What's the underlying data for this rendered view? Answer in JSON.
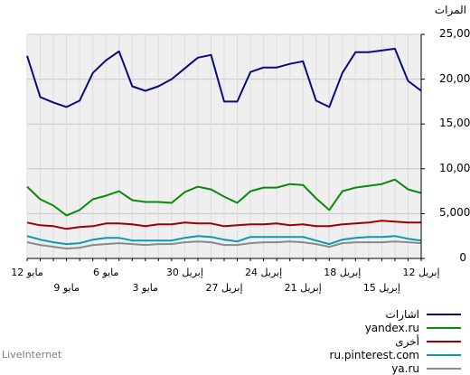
{
  "footer": "LiveInternet",
  "chart_data": {
    "type": "line",
    "y_axis_title": "المرات",
    "y_ticks": [
      0,
      5000,
      10000,
      15000,
      20000,
      25000
    ],
    "y_tick_labels": [
      "0",
      "5,000",
      "10,000",
      "15,000",
      "20,000",
      "25,000"
    ],
    "ylim": [
      0,
      25000
    ],
    "grid": true,
    "x_tick_labels": [
      {
        "index": 0,
        "text": "12 مايو",
        "row": 1
      },
      {
        "index": 3,
        "text": "9 مايو",
        "row": 2
      },
      {
        "index": 6,
        "text": "6 مايو",
        "row": 1
      },
      {
        "index": 9,
        "text": "3 مايو",
        "row": 2
      },
      {
        "index": 12,
        "text": "30 إبريل",
        "row": 1
      },
      {
        "index": 15,
        "text": "27 إبريل",
        "row": 2
      },
      {
        "index": 18,
        "text": "24 إبريل",
        "row": 1
      },
      {
        "index": 21,
        "text": "21 إبريل",
        "row": 2
      },
      {
        "index": 24,
        "text": "18 إبريل",
        "row": 1
      },
      {
        "index": 27,
        "text": "15 إبريل",
        "row": 2
      },
      {
        "index": 30,
        "text": "12 إبريل",
        "row": 1
      }
    ],
    "series": [
      {
        "name": "اشارات",
        "color": "#0a0a82",
        "values": [
          22600,
          18000,
          17400,
          16900,
          17600,
          20700,
          22100,
          23100,
          19200,
          18700,
          19200,
          20000,
          21200,
          22400,
          22700,
          17500,
          17500,
          20800,
          21300,
          21300,
          21700,
          22000,
          17600,
          16900,
          20700,
          23000,
          23000,
          23200,
          23400,
          19800,
          18700
        ]
      },
      {
        "name": "yandex.ru",
        "color": "#0a8a0a",
        "values": [
          8000,
          6600,
          5900,
          4800,
          5400,
          6600,
          7000,
          7500,
          6500,
          6300,
          6300,
          6200,
          7400,
          8000,
          7700,
          6900,
          6200,
          7500,
          7900,
          7900,
          8300,
          8200,
          6700,
          5400,
          7500,
          7900,
          8100,
          8300,
          8800,
          7700,
          7300
        ]
      },
      {
        "name": "أخرى",
        "color": "#a00000",
        "values": [
          4000,
          3700,
          3600,
          3300,
          3500,
          3600,
          3900,
          3900,
          3800,
          3600,
          3800,
          3800,
          4000,
          3900,
          3900,
          3600,
          3700,
          3800,
          3800,
          3900,
          3700,
          3800,
          3600,
          3600,
          3800,
          3900,
          4000,
          4200,
          4100,
          4000,
          4000
        ]
      },
      {
        "name": "ru.pinterest.com",
        "color": "#0a9aaa",
        "values": [
          2500,
          2100,
          1800,
          1600,
          1700,
          2100,
          2300,
          2300,
          2000,
          2000,
          2000,
          2000,
          2300,
          2500,
          2400,
          2100,
          1900,
          2400,
          2400,
          2400,
          2400,
          2400,
          2000,
          1600,
          2100,
          2300,
          2400,
          2400,
          2500,
          2200,
          2000
        ]
      },
      {
        "name": "ya.ru",
        "color": "#8a8a8a",
        "values": [
          1800,
          1500,
          1300,
          1100,
          1200,
          1500,
          1600,
          1700,
          1600,
          1500,
          1600,
          1600,
          1800,
          1900,
          1800,
          1500,
          1500,
          1700,
          1800,
          1800,
          1900,
          1800,
          1600,
          1300,
          1700,
          1800,
          1800,
          1800,
          1900,
          1800,
          1700
        ]
      }
    ]
  }
}
